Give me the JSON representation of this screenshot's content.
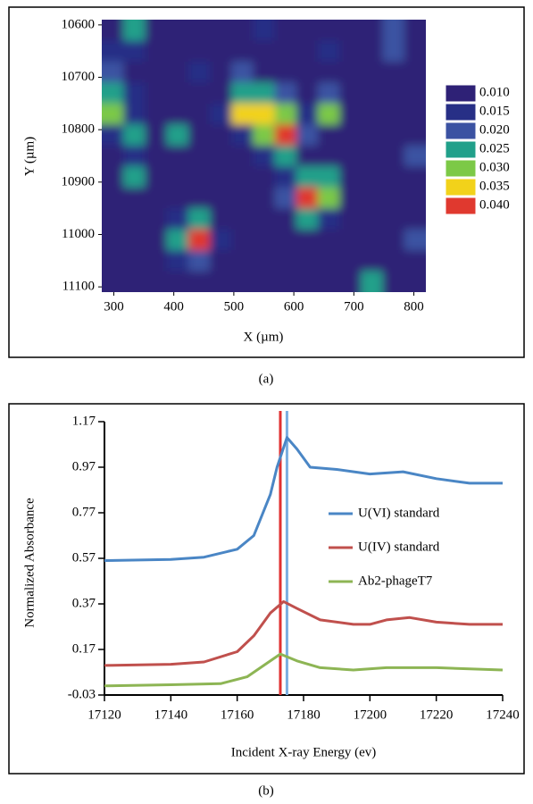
{
  "chart_data": [
    {
      "type": "heatmap",
      "x_label": "X (µm)",
      "y_label": "Y (µm)",
      "caption": "(a)",
      "x": [
        298,
        334,
        370,
        406,
        442,
        478,
        514,
        550,
        586,
        622,
        658,
        694,
        730,
        766,
        802
      ],
      "y": [
        10610,
        10650,
        10690,
        10730,
        10770,
        10810,
        10850,
        10890,
        10930,
        10970,
        11010,
        11050,
        11090
      ],
      "z": [
        [
          0.012,
          0.025,
          0.012,
          0.01,
          0.012,
          0.01,
          0.012,
          0.015,
          0.012,
          0.01,
          0.012,
          0.012,
          0.01,
          0.02,
          0.012
        ],
        [
          0.015,
          0.018,
          0.01,
          0.012,
          0.01,
          0.012,
          0.01,
          0.012,
          0.01,
          0.012,
          0.015,
          0.01,
          0.012,
          0.022,
          0.012
        ],
        [
          0.02,
          0.012,
          0.01,
          0.012,
          0.015,
          0.01,
          0.02,
          0.012,
          0.01,
          0.012,
          0.01,
          0.012,
          0.01,
          0.012,
          0.01
        ],
        [
          0.025,
          0.015,
          0.012,
          0.01,
          0.012,
          0.012,
          0.025,
          0.028,
          0.02,
          0.012,
          0.02,
          0.01,
          0.012,
          0.01,
          0.012
        ],
        [
          0.03,
          0.015,
          0.01,
          0.012,
          0.01,
          0.015,
          0.035,
          0.038,
          0.03,
          0.015,
          0.032,
          0.012,
          0.01,
          0.012,
          0.01
        ],
        [
          0.015,
          0.028,
          0.012,
          0.025,
          0.01,
          0.012,
          0.015,
          0.032,
          0.04,
          0.02,
          0.012,
          0.01,
          0.012,
          0.01,
          0.012
        ],
        [
          0.01,
          0.018,
          0.01,
          0.012,
          0.012,
          0.01,
          0.012,
          0.015,
          0.025,
          0.012,
          0.01,
          0.012,
          0.01,
          0.012,
          0.024
        ],
        [
          0.012,
          0.025,
          0.012,
          0.01,
          0.01,
          0.012,
          0.01,
          0.012,
          0.015,
          0.028,
          0.025,
          0.01,
          0.012,
          0.01,
          0.012
        ],
        [
          0.01,
          0.012,
          0.01,
          0.012,
          0.012,
          0.01,
          0.012,
          0.01,
          0.02,
          0.04,
          0.03,
          0.012,
          0.01,
          0.012,
          0.01
        ],
        [
          0.012,
          0.01,
          0.012,
          0.015,
          0.028,
          0.012,
          0.01,
          0.012,
          0.01,
          0.025,
          0.015,
          0.01,
          0.012,
          0.01,
          0.012
        ],
        [
          0.01,
          0.012,
          0.01,
          0.028,
          0.04,
          0.015,
          0.012,
          0.01,
          0.012,
          0.012,
          0.01,
          0.012,
          0.01,
          0.012,
          0.02
        ],
        [
          0.012,
          0.01,
          0.012,
          0.015,
          0.022,
          0.012,
          0.01,
          0.012,
          0.01,
          0.012,
          0.012,
          0.01,
          0.012,
          0.01,
          0.012
        ],
        [
          0.01,
          0.012,
          0.01,
          0.012,
          0.01,
          0.012,
          0.012,
          0.01,
          0.012,
          0.01,
          0.012,
          0.01,
          0.025,
          0.012,
          0.01
        ]
      ],
      "xlim": [
        280,
        820
      ],
      "xticks": [
        300,
        400,
        500,
        600,
        700,
        800
      ],
      "ylim": [
        11110,
        10590
      ],
      "yticks": [
        10600,
        10700,
        10800,
        10900,
        11000,
        11100
      ],
      "legend": {
        "levels": [
          {
            "value": 0.01,
            "label": "0.010"
          },
          {
            "value": 0.015,
            "label": "0.015"
          },
          {
            "value": 0.02,
            "label": "0.020"
          },
          {
            "value": 0.025,
            "label": "0.025"
          },
          {
            "value": 0.03,
            "label": "0.030"
          },
          {
            "value": 0.035,
            "label": "0.035"
          },
          {
            "value": 0.04,
            "label": "0.040"
          }
        ],
        "colors": [
          "#2e2176",
          "#272f86",
          "#3b52a2",
          "#21a08a",
          "#7cc947",
          "#f2d21a",
          "#e0392f"
        ]
      }
    },
    {
      "type": "line",
      "x_label": "Incident X-ray Energy (ev)",
      "y_label": "Normalized Absorbance",
      "caption": "(b)",
      "xlim": [
        17120,
        17240
      ],
      "xticks": [
        17120,
        17140,
        17160,
        17180,
        17200,
        17220,
        17240
      ],
      "ylim": [
        -0.03,
        1.17
      ],
      "yticks": [
        -0.03,
        0.17,
        0.37,
        0.57,
        0.77,
        0.97,
        1.17
      ],
      "legend": "right",
      "vlines": [
        {
          "x": 17173,
          "color": "#e03030"
        },
        {
          "x": 17175,
          "color": "#7aaee0"
        }
      ],
      "series": [
        {
          "name": "U(VI) standard",
          "color": "#4a86c5",
          "x": [
            17120,
            17140,
            17150,
            17160,
            17165,
            17170,
            17172,
            17175,
            17178,
            17182,
            17190,
            17200,
            17210,
            17220,
            17230,
            17240
          ],
          "values": [
            0.56,
            0.565,
            0.575,
            0.61,
            0.67,
            0.85,
            0.97,
            1.1,
            1.05,
            0.97,
            0.96,
            0.94,
            0.95,
            0.92,
            0.9,
            0.9
          ]
        },
        {
          "name": "U(IV) standard",
          "color": "#c0504d",
          "x": [
            17120,
            17140,
            17150,
            17160,
            17165,
            17170,
            17174,
            17178,
            17185,
            17195,
            17200,
            17205,
            17212,
            17220,
            17230,
            17240
          ],
          "values": [
            0.1,
            0.105,
            0.115,
            0.16,
            0.23,
            0.33,
            0.38,
            0.35,
            0.3,
            0.28,
            0.28,
            0.3,
            0.31,
            0.29,
            0.28,
            0.28
          ]
        },
        {
          "name": "Ab2-phageT7",
          "color": "#8db554",
          "x": [
            17120,
            17140,
            17155,
            17163,
            17168,
            17173,
            17178,
            17185,
            17195,
            17205,
            17220,
            17240
          ],
          "values": [
            0.01,
            0.015,
            0.02,
            0.05,
            0.1,
            0.15,
            0.12,
            0.09,
            0.08,
            0.09,
            0.09,
            0.08
          ]
        }
      ]
    }
  ]
}
